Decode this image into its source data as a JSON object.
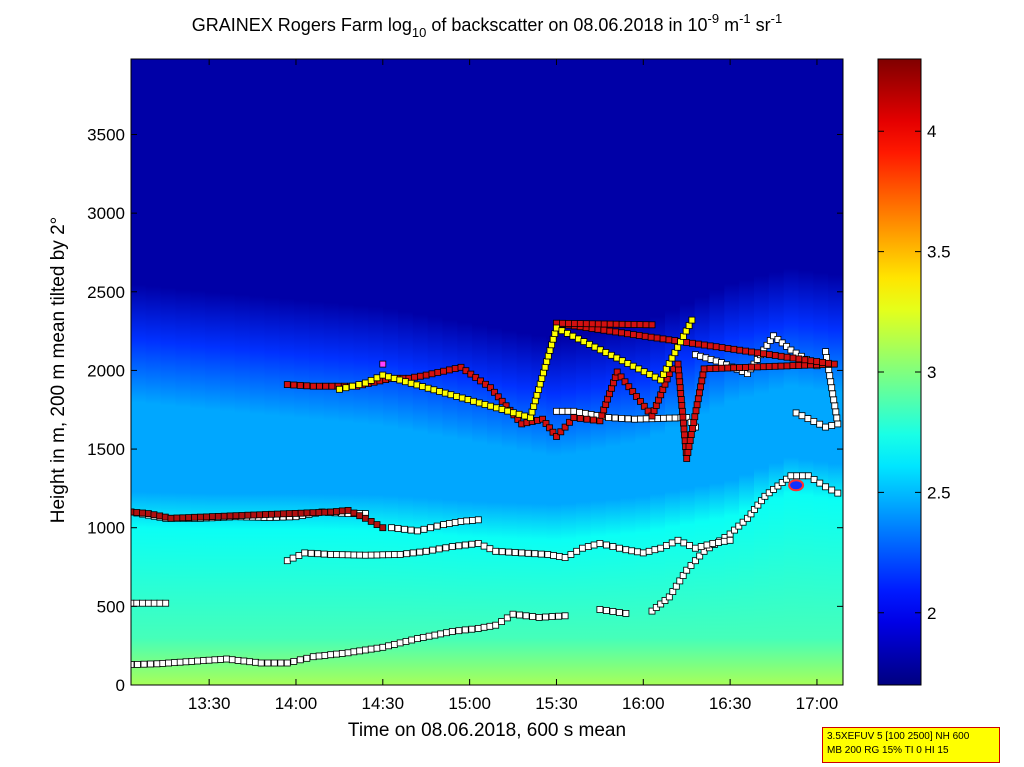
{
  "title": {
    "prefix": "GRAINEX Rogers Farm log",
    "sub": "10",
    "middle": " of backscatter on 08.06.2018 in 10",
    "sup1": "-9",
    "unit1": " m",
    "sup2": "-1",
    "unit2": " sr",
    "sup3": "-1"
  },
  "info_box": {
    "line1": "3.5XEFUV 5 [100 2500] NH 600",
    "line2": "MB 200 RG 15% TI 0 HI 15"
  },
  "chart_data": {
    "type": "heatmap",
    "xlabel": "Time on 08.06.2018, 600 s mean",
    "ylabel": "Height in m, 200 m mean tilted by 2°",
    "x_range_hours": [
      13.05,
      17.15
    ],
    "ylim": [
      0,
      3980
    ],
    "x_ticks": [
      {
        "value": 13.5,
        "label": "13:30"
      },
      {
        "value": 14.0,
        "label": "14:00"
      },
      {
        "value": 14.5,
        "label": "14:30"
      },
      {
        "value": 15.0,
        "label": "15:00"
      },
      {
        "value": 15.5,
        "label": "15:30"
      },
      {
        "value": 16.0,
        "label": "16:00"
      },
      {
        "value": 16.5,
        "label": "16:30"
      },
      {
        "value": 17.0,
        "label": "17:00"
      }
    ],
    "y_ticks": [
      {
        "value": 0,
        "label": "0"
      },
      {
        "value": 500,
        "label": "500"
      },
      {
        "value": 1000,
        "label": "1000"
      },
      {
        "value": 1500,
        "label": "1500"
      },
      {
        "value": 2000,
        "label": "2000"
      },
      {
        "value": 2500,
        "label": "2500"
      },
      {
        "value": 3000,
        "label": "3000"
      },
      {
        "value": 3500,
        "label": "3500"
      }
    ],
    "colorbar": {
      "range": [
        1.7,
        4.3
      ],
      "colormap": "jet",
      "ticks": [
        {
          "value": 2.0,
          "label": "2"
        },
        {
          "value": 2.5,
          "label": "2.5"
        },
        {
          "value": 3.0,
          "label": "3"
        },
        {
          "value": 3.5,
          "label": "3.5"
        },
        {
          "value": 4.0,
          "label": "4"
        }
      ]
    },
    "field_profile": {
      "time_hours": [
        13.05,
        13.5,
        14.0,
        14.5,
        15.0,
        15.5,
        16.0,
        16.5,
        16.85,
        17.15
      ],
      "mixed_layer_top_m": [
        1080,
        1070,
        1070,
        1060,
        1020,
        1000,
        1050,
        1150,
        1300,
        1250
      ],
      "residual_top_m": [
        2300,
        2250,
        2200,
        2150,
        2050,
        1950,
        2050,
        2300,
        2400,
        2350
      ],
      "surface_value": 3.1,
      "mixed_value": 2.7,
      "residual_value": 2.45,
      "free_troposphere_value": 1.8
    },
    "layer_series": [
      {
        "color": "#ffffff",
        "points": [
          [
            13.05,
            130
          ],
          [
            13.2,
            135
          ],
          [
            13.4,
            150
          ],
          [
            13.6,
            165
          ],
          [
            13.8,
            140
          ],
          [
            13.95,
            140
          ],
          [
            14.1,
            180
          ],
          [
            14.3,
            205
          ],
          [
            14.5,
            240
          ],
          [
            14.7,
            295
          ],
          [
            14.9,
            340
          ],
          [
            15.05,
            360
          ],
          [
            15.15,
            380
          ],
          [
            15.25,
            450
          ],
          [
            15.4,
            430
          ],
          [
            15.55,
            440
          ]
        ]
      },
      {
        "color": "#ffffff",
        "points": [
          [
            15.75,
            480
          ],
          [
            15.9,
            455
          ]
        ]
      },
      {
        "color": "#ffffff",
        "points": [
          [
            16.05,
            470
          ],
          [
            16.15,
            560
          ],
          [
            16.25,
            730
          ],
          [
            16.35,
            850
          ],
          [
            16.5,
            960
          ],
          [
            16.6,
            1060
          ],
          [
            16.7,
            1200
          ],
          [
            16.85,
            1330
          ],
          [
            16.95,
            1330
          ],
          [
            17.05,
            1260
          ],
          [
            17.12,
            1220
          ]
        ]
      },
      {
        "color": "#ffffff",
        "points": [
          [
            13.05,
            520
          ],
          [
            13.25,
            520
          ]
        ]
      },
      {
        "color": "#ffffff",
        "points": [
          [
            13.95,
            790
          ],
          [
            14.05,
            840
          ],
          [
            14.2,
            830
          ],
          [
            14.4,
            825
          ],
          [
            14.6,
            830
          ],
          [
            14.75,
            850
          ],
          [
            14.9,
            880
          ],
          [
            15.05,
            900
          ],
          [
            15.15,
            850
          ],
          [
            15.3,
            840
          ],
          [
            15.45,
            830
          ],
          [
            15.55,
            810
          ],
          [
            15.65,
            870
          ],
          [
            15.75,
            900
          ],
          [
            15.9,
            860
          ],
          [
            16.0,
            840
          ],
          [
            16.1,
            870
          ],
          [
            16.2,
            920
          ],
          [
            16.3,
            870
          ],
          [
            16.4,
            900
          ],
          [
            16.5,
            920
          ]
        ]
      },
      {
        "color": "#ffffff",
        "points": [
          [
            14.55,
            1000
          ],
          [
            14.7,
            980
          ],
          [
            14.85,
            1020
          ],
          [
            14.95,
            1040
          ],
          [
            15.05,
            1050
          ]
        ]
      },
      {
        "color": "#ffffff",
        "points": [
          [
            13.05,
            1100
          ],
          [
            13.25,
            1060
          ],
          [
            13.45,
            1060
          ],
          [
            13.65,
            1070
          ],
          [
            13.85,
            1065
          ],
          [
            14.0,
            1070
          ],
          [
            14.15,
            1100
          ],
          [
            14.3,
            1090
          ],
          [
            14.4,
            1090
          ]
        ]
      },
      {
        "color": "#b01010",
        "points": [
          [
            13.05,
            1100
          ],
          [
            13.15,
            1090
          ],
          [
            13.28,
            1060
          ],
          [
            14.2,
            1100
          ],
          [
            14.3,
            1110
          ],
          [
            14.4,
            1060
          ],
          [
            14.5,
            1000
          ]
        ]
      },
      {
        "color": "#ffffff",
        "points": [
          [
            15.5,
            1740
          ],
          [
            15.6,
            1740
          ],
          [
            15.8,
            1700
          ],
          [
            15.95,
            1690
          ],
          [
            16.25,
            1700
          ],
          [
            16.3,
            1640
          ]
        ]
      },
      {
        "color": "#ffffff",
        "points": [
          [
            16.3,
            2100
          ],
          [
            16.45,
            2050
          ],
          [
            16.6,
            1980
          ],
          [
            16.75,
            2220
          ],
          [
            16.85,
            2130
          ],
          [
            17.0,
            2030
          ]
        ]
      },
      {
        "color": "#ffffff",
        "points": [
          [
            16.88,
            1730
          ],
          [
            17.05,
            1640
          ],
          [
            17.12,
            1660
          ],
          [
            17.05,
            2120
          ]
        ]
      },
      {
        "color": "#d41010",
        "points": [
          [
            13.95,
            1910
          ],
          [
            14.1,
            1900
          ],
          [
            14.35,
            1900
          ],
          [
            14.55,
            1950
          ],
          [
            14.65,
            1950
          ],
          [
            14.75,
            1970
          ],
          [
            14.95,
            2020
          ],
          [
            15.12,
            1890
          ],
          [
            15.3,
            1660
          ],
          [
            15.42,
            1690
          ],
          [
            15.5,
            1580
          ],
          [
            15.6,
            1700
          ],
          [
            15.75,
            1680
          ],
          [
            15.85,
            1990
          ],
          [
            16.05,
            1710
          ],
          [
            16.15,
            1980
          ],
          [
            16.2,
            2040
          ],
          [
            16.25,
            1440
          ],
          [
            16.35,
            2010
          ],
          [
            17.1,
            2040
          ],
          [
            15.5,
            2300
          ],
          [
            16.05,
            2290
          ]
        ]
      },
      {
        "color": "#ffff00",
        "points": [
          [
            14.25,
            1880
          ],
          [
            14.4,
            1920
          ],
          [
            14.5,
            1970
          ],
          [
            15.35,
            1700
          ],
          [
            15.5,
            2270
          ],
          [
            16.1,
            1940
          ],
          [
            16.28,
            2320
          ]
        ]
      },
      {
        "color": "#ff40ff",
        "points": [
          [
            14.5,
            2040
          ]
        ]
      }
    ],
    "annotation_marker": {
      "time_hours": 16.88,
      "height_m": 1270
    }
  }
}
